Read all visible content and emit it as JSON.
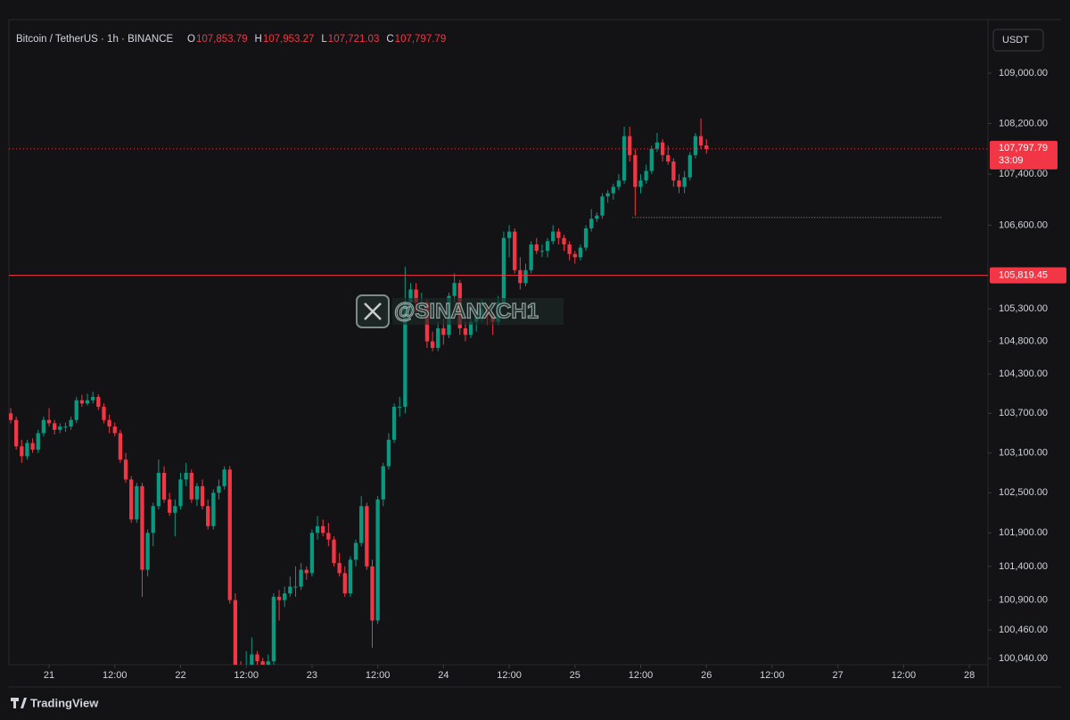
{
  "chart_data": {
    "type": "candlestick",
    "title": "Bitcoin / TetherUS · 1h · BINANCE",
    "ohlc_header": [
      {
        "label": "O",
        "value": "107,853.79"
      },
      {
        "label": "H",
        "value": "107,953.27"
      },
      {
        "label": "L",
        "value": "107,721.03"
      },
      {
        "label": "C",
        "value": "107,797.79"
      }
    ],
    "currency": "USDT",
    "log_scale": true,
    "up_color": "#089981",
    "down_color": "#f23645",
    "ylim": [
      99950,
      109860
    ],
    "yticks": [
      {
        "value": 109000,
        "label": "109,000.00"
      },
      {
        "value": 108200,
        "label": "108,200.00"
      },
      {
        "value": 107400,
        "label": "107,400.00"
      },
      {
        "value": 106600,
        "label": "106,600.00"
      },
      {
        "value": 105300,
        "label": "105,300.00"
      },
      {
        "value": 104800,
        "label": "104,800.00"
      },
      {
        "value": 104300,
        "label": "104,300.00"
      },
      {
        "value": 103700,
        "label": "103,700.00"
      },
      {
        "value": 103100,
        "label": "103,100.00"
      },
      {
        "value": 102500,
        "label": "102,500.00"
      },
      {
        "value": 101900,
        "label": "101,900.00"
      },
      {
        "value": 101400,
        "label": "101,400.00"
      },
      {
        "value": 100900,
        "label": "100,900.00"
      },
      {
        "value": 100460,
        "label": "100,460.00"
      },
      {
        "value": 100040,
        "label": "100,040.00"
      }
    ],
    "xlim": [
      -0.33,
      178.4
    ],
    "xticks": [
      {
        "value": 7,
        "label": "21"
      },
      {
        "value": 19,
        "label": "12:00"
      },
      {
        "value": 31,
        "label": "22"
      },
      {
        "value": 43,
        "label": "12:00"
      },
      {
        "value": 55,
        "label": "23"
      },
      {
        "value": 67,
        "label": "12:00"
      },
      {
        "value": 79,
        "label": "24"
      },
      {
        "value": 91,
        "label": "12:00"
      },
      {
        "value": 103,
        "label": "25"
      },
      {
        "value": 115,
        "label": "12:00"
      },
      {
        "value": 127,
        "label": "26"
      },
      {
        "value": 139,
        "label": "12:00"
      },
      {
        "value": 151,
        "label": "27"
      },
      {
        "value": 163,
        "label": "12:00"
      },
      {
        "value": 175,
        "label": "28"
      }
    ],
    "current_price": {
      "value": 107797.79,
      "label": "107,797.79"
    },
    "countdown": "33:09",
    "level_line": {
      "value": 105819.45,
      "label": "105,819.45"
    },
    "dotted_line": 106720,
    "watermark": "@SINANXCH1",
    "brand": "TradingView",
    "candles": [
      [
        103700,
        103780,
        103550,
        103600
      ],
      [
        103600,
        103650,
        103150,
        103200
      ],
      [
        103200,
        103300,
        102950,
        103050
      ],
      [
        103050,
        103300,
        103000,
        103250
      ],
      [
        103250,
        103320,
        103100,
        103150
      ],
      [
        103150,
        103450,
        103100,
        103400
      ],
      [
        103400,
        103650,
        103350,
        103600
      ],
      [
        103600,
        103780,
        103500,
        103550
      ],
      [
        103550,
        103600,
        103380,
        103450
      ],
      [
        103450,
        103550,
        103400,
        103500
      ],
      [
        103500,
        103560,
        103420,
        103500
      ],
      [
        103500,
        103650,
        103450,
        103600
      ],
      [
        103600,
        103950,
        103550,
        103900
      ],
      [
        103900,
        103980,
        103800,
        103850
      ],
      [
        103850,
        104000,
        103820,
        103900
      ],
      [
        103900,
        104030,
        103850,
        103950
      ],
      [
        103950,
        103990,
        103750,
        103800
      ],
      [
        103800,
        103850,
        103550,
        103600
      ],
      [
        103600,
        103680,
        103400,
        103500
      ],
      [
        103500,
        103560,
        103350,
        103400
      ],
      [
        103400,
        103450,
        102950,
        103000
      ],
      [
        103000,
        103100,
        102650,
        102700
      ],
      [
        102700,
        102750,
        102050,
        102100
      ],
      [
        102100,
        102650,
        102050,
        102600
      ],
      [
        102600,
        102650,
        100950,
        101350
      ],
      [
        101350,
        101950,
        101250,
        101900
      ],
      [
        101900,
        102350,
        101700,
        102300
      ],
      [
        102300,
        103000,
        102250,
        102800
      ],
      [
        102800,
        102900,
        102350,
        102400
      ],
      [
        102400,
        102500,
        102150,
        102200
      ],
      [
        102200,
        102400,
        101850,
        102300
      ],
      [
        102300,
        102800,
        102250,
        102700
      ],
      [
        102700,
        102950,
        102600,
        102800
      ],
      [
        102800,
        102850,
        102350,
        102400
      ],
      [
        102400,
        102650,
        102300,
        102600
      ],
      [
        102600,
        102700,
        102250,
        102300
      ],
      [
        102300,
        102400,
        101950,
        102000
      ],
      [
        102000,
        102550,
        101950,
        102500
      ],
      [
        102500,
        102700,
        102400,
        102600
      ],
      [
        102600,
        102900,
        102550,
        102850
      ],
      [
        102850,
        102900,
        100850,
        100900
      ],
      [
        100900,
        101000,
        99900,
        99950
      ],
      [
        99950,
        100000,
        99700,
        99900
      ],
      [
        99900,
        100150,
        99800,
        99950
      ],
      [
        99950,
        100350,
        99900,
        100100
      ],
      [
        100100,
        100150,
        99850,
        100000
      ],
      [
        100000,
        100050,
        99800,
        99950
      ],
      [
        99950,
        100100,
        99850,
        100000
      ],
      [
        100000,
        101000,
        99950,
        100950
      ],
      [
        100950,
        101050,
        100600,
        100900
      ],
      [
        100900,
        101100,
        100800,
        101000
      ],
      [
        101000,
        101250,
        100950,
        101100
      ],
      [
        101100,
        101400,
        100950,
        101100
      ],
      [
        101100,
        101450,
        101050,
        101350
      ],
      [
        101350,
        101400,
        101200,
        101300
      ],
      [
        101300,
        101950,
        101250,
        101900
      ],
      [
        101900,
        102150,
        101800,
        102000
      ],
      [
        102000,
        102100,
        101850,
        101900
      ],
      [
        101900,
        102050,
        101700,
        101800
      ],
      [
        101800,
        101850,
        101400,
        101450
      ],
      [
        101450,
        101600,
        101250,
        101300
      ],
      [
        101300,
        101400,
        100950,
        101000
      ],
      [
        101000,
        101550,
        100950,
        101500
      ],
      [
        101500,
        101800,
        101400,
        101750
      ],
      [
        101750,
        102450,
        101700,
        102300
      ],
      [
        102300,
        102350,
        101350,
        101400
      ],
      [
        101400,
        101500,
        100200,
        100600
      ],
      [
        100600,
        102450,
        100550,
        102400
      ],
      [
        102400,
        102950,
        102300,
        102900
      ],
      [
        102900,
        103400,
        102850,
        103300
      ],
      [
        103300,
        103850,
        103250,
        103800
      ],
      [
        103800,
        103950,
        103650,
        103800
      ],
      [
        103800,
        105950,
        103700,
        105400
      ],
      [
        105400,
        105700,
        105200,
        105600
      ],
      [
        105600,
        105700,
        105250,
        105400
      ],
      [
        105400,
        105550,
        105150,
        105400
      ],
      [
        105400,
        105450,
        104700,
        104800
      ],
      [
        104800,
        104950,
        104650,
        104700
      ],
      [
        104700,
        105100,
        104650,
        105000
      ],
      [
        105000,
        105150,
        104750,
        104900
      ],
      [
        104900,
        105550,
        104850,
        105500
      ],
      [
        105500,
        105850,
        105400,
        105700
      ],
      [
        105700,
        105750,
        104900,
        105000
      ],
      [
        105000,
        105100,
        104800,
        104900
      ],
      [
        104900,
        105150,
        104850,
        105100
      ],
      [
        105100,
        105300,
        104950,
        105200
      ],
      [
        105200,
        105450,
        105100,
        105300
      ],
      [
        105300,
        105350,
        105050,
        105200
      ],
      [
        105200,
        105250,
        104900,
        105100
      ],
      [
        105100,
        105500,
        105050,
        105400
      ],
      [
        105400,
        106500,
        105350,
        106400
      ],
      [
        106400,
        106600,
        106100,
        106500
      ],
      [
        106500,
        106550,
        105850,
        105900
      ],
      [
        105900,
        106100,
        105600,
        105700
      ],
      [
        105700,
        106000,
        105650,
        105900
      ],
      [
        105900,
        106350,
        105850,
        106300
      ],
      [
        106300,
        106400,
        106150,
        106200
      ],
      [
        106200,
        106300,
        106100,
        106200
      ],
      [
        106200,
        106400,
        106100,
        106350
      ],
      [
        106350,
        106600,
        106300,
        106500
      ],
      [
        106500,
        106550,
        106300,
        106400
      ],
      [
        106400,
        106450,
        106200,
        106300
      ],
      [
        106300,
        106350,
        106050,
        106150
      ],
      [
        106150,
        106200,
        106000,
        106100
      ],
      [
        106100,
        106300,
        106050,
        106250
      ],
      [
        106250,
        106600,
        106200,
        106550
      ],
      [
        106550,
        106850,
        106500,
        106700
      ],
      [
        106700,
        106800,
        106650,
        106750
      ],
      [
        106750,
        107100,
        106700,
        107050
      ],
      [
        107050,
        107150,
        106950,
        107100
      ],
      [
        107100,
        107250,
        107000,
        107200
      ],
      [
        107200,
        107400,
        107150,
        107300
      ],
      [
        107300,
        108150,
        107250,
        108000
      ],
      [
        108000,
        108150,
        107600,
        107700
      ],
      [
        107700,
        107800,
        106750,
        107200
      ],
      [
        107200,
        107400,
        107100,
        107300
      ],
      [
        107300,
        107550,
        107250,
        107450
      ],
      [
        107450,
        107850,
        107400,
        107800
      ],
      [
        107800,
        108050,
        107750,
        107900
      ],
      [
        107900,
        107950,
        107600,
        107700
      ],
      [
        107700,
        107850,
        107550,
        107600
      ],
      [
        107600,
        107650,
        107200,
        107300
      ],
      [
        107300,
        107400,
        107100,
        107200
      ],
      [
        107200,
        107450,
        107100,
        107350
      ],
      [
        107350,
        107750,
        107300,
        107700
      ],
      [
        107700,
        108050,
        107650,
        108000
      ],
      [
        108000,
        108280,
        107800,
        107853.79
      ],
      [
        107853.79,
        107953.27,
        107721.03,
        107797.79
      ]
    ]
  }
}
